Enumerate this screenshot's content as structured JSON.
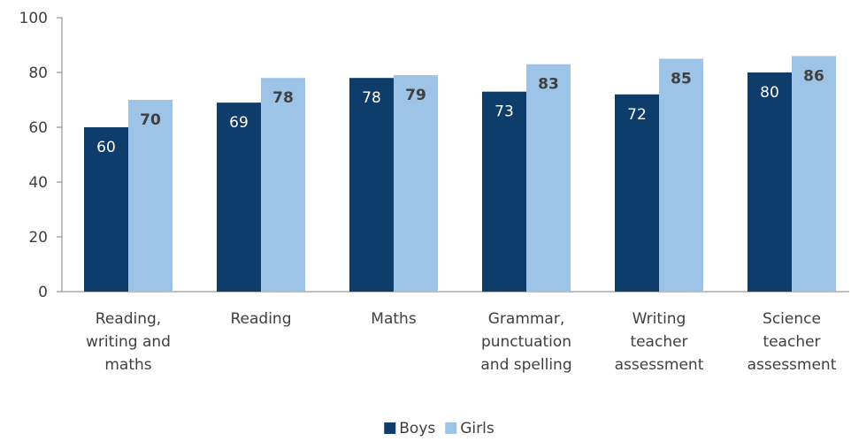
{
  "chart_data": {
    "type": "bar",
    "categories": [
      [
        "Reading,",
        "writing and",
        "maths"
      ],
      [
        "Reading"
      ],
      [
        "Maths"
      ],
      [
        "Grammar,",
        "punctuation",
        "and spelling"
      ],
      [
        "Writing",
        "teacher",
        "assessment"
      ],
      [
        "Science",
        "teacher",
        "assessment"
      ]
    ],
    "series": [
      {
        "name": "Boys",
        "color": "#0e3d6b",
        "label_color": "#ffffff",
        "label_weight": "normal",
        "values": [
          60,
          69,
          78,
          73,
          72,
          80
        ]
      },
      {
        "name": "Girls",
        "color": "#9dc3e6",
        "label_color": "#404040",
        "label_weight": "bold",
        "values": [
          70,
          78,
          79,
          83,
          85,
          86
        ]
      }
    ],
    "ylim": [
      0,
      100
    ],
    "yticks": [
      0,
      20,
      40,
      60,
      80,
      100
    ],
    "grid": false,
    "legend_position": "bottom",
    "title": "",
    "xlabel": "",
    "ylabel": ""
  }
}
